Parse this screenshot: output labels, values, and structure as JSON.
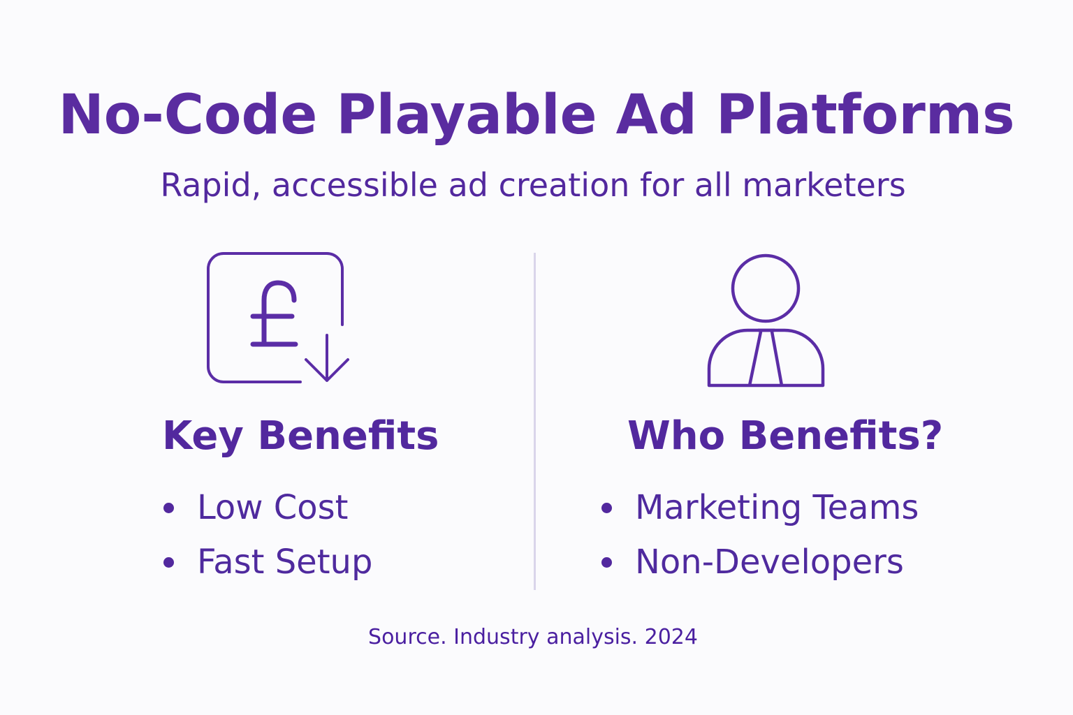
{
  "title": "No-Code Playable Ad Platforms",
  "subtitle": "Rapid, accessible ad creation for all marketers",
  "left": {
    "icon": "pound-cost-down-icon",
    "heading": "Key Benefits",
    "items": [
      "Low Cost",
      "Fast Setup"
    ]
  },
  "right": {
    "icon": "person-tie-icon",
    "heading": "Who Benefits?",
    "items": [
      "Marketing Teams",
      "Non-Developers"
    ]
  },
  "source": "Source. Industry analysis. 2024",
  "colors": {
    "accent": "#5a2ca0",
    "divider": "#d9d5ea",
    "background": "#fbfbfd"
  }
}
